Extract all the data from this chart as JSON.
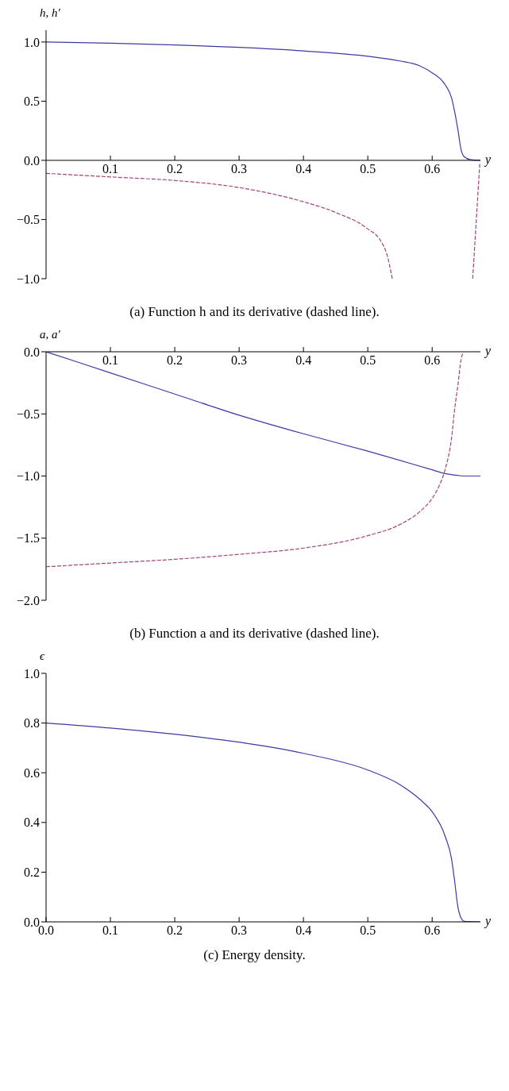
{
  "chart_data": [
    {
      "type": "line",
      "title": "(a) Function h and its derivative (dashed line).",
      "xlabel": "y",
      "ylabel": "h, h′",
      "xlim": [
        0,
        0.675
      ],
      "ylim": [
        -1,
        1.1
      ],
      "xticks": [
        0.1,
        0.2,
        0.3,
        0.4,
        0.5,
        0.6
      ],
      "yticks": [
        {
          "value": -1,
          "label": "−1.0"
        },
        {
          "value": -0.5,
          "label": "−0.5"
        },
        {
          "value": 0,
          "label": "0.0"
        },
        {
          "value": 0.5,
          "label": "0.5"
        },
        {
          "value": 1,
          "label": "1.0"
        }
      ],
      "marker": "none",
      "series": [
        {
          "color": "#3b3ba6",
          "line_style": "solid",
          "x": [
            0,
            0.1,
            0.2,
            0.3,
            0.4,
            0.5,
            0.55,
            0.58,
            0.6,
            0.62,
            0.63,
            0.635,
            0.64,
            0.645,
            0.65,
            0.66,
            0.675
          ],
          "values": [
            1,
            0.99,
            0.975,
            0.955,
            0.925,
            0.88,
            0.84,
            0.8,
            0.74,
            0.64,
            0.53,
            0.41,
            0.26,
            0.09,
            0.03,
            0.005,
            0
          ]
        },
        {
          "color": "#a3447c",
          "line_style": "dashed",
          "x": [
            0,
            0.1,
            0.2,
            0.3,
            0.4,
            0.45,
            0.5,
            0.52,
            0.53,
            0.538,
            0.6,
            0.663,
            0.674
          ],
          "values": [
            -0.11,
            -0.14,
            -0.17,
            -0.23,
            -0.35,
            -0.44,
            -0.58,
            -0.68,
            -0.8,
            -1,
            null,
            -1,
            -0.03
          ]
        }
      ]
    },
    {
      "type": "line",
      "title": "(b) Function a and its derivative (dashed line).",
      "xlabel": "y",
      "ylabel": "a, a'",
      "xlim": [
        0,
        0.675
      ],
      "ylim": [
        -2,
        0
      ],
      "xticks": [
        0.1,
        0.2,
        0.3,
        0.4,
        0.5,
        0.6
      ],
      "yticks": [
        {
          "value": -2,
          "label": "−2.0"
        },
        {
          "value": -1.5,
          "label": "−1.5"
        },
        {
          "value": -1,
          "label": "−1.0"
        },
        {
          "value": -0.5,
          "label": "−0.5"
        },
        {
          "value": 0,
          "label": "0.0"
        }
      ],
      "marker": "none",
      "series": [
        {
          "color": "#3b3ba6",
          "line_style": "solid",
          "x": [
            0,
            0.1,
            0.2,
            0.3,
            0.4,
            0.5,
            0.6,
            0.62,
            0.64,
            0.65,
            0.675
          ],
          "values": [
            0,
            -0.17,
            -0.34,
            -0.51,
            -0.66,
            -0.8,
            -0.95,
            -0.98,
            -0.995,
            -1,
            -1
          ]
        },
        {
          "color": "#a3447c",
          "line_style": "dashed",
          "x": [
            0,
            0.1,
            0.2,
            0.3,
            0.4,
            0.5,
            0.55,
            0.58,
            0.6,
            0.61,
            0.62,
            0.63,
            0.635,
            0.64,
            0.645,
            0.648
          ],
          "values": [
            -1.73,
            -1.7,
            -1.67,
            -1.63,
            -1.58,
            -1.48,
            -1.39,
            -1.29,
            -1.18,
            -1.09,
            -0.95,
            -0.7,
            -0.46,
            -0.27,
            -0.06,
            -0.01
          ]
        }
      ]
    },
    {
      "type": "line",
      "title": "(c) Energy density.",
      "xlabel": "y",
      "ylabel": "ϵ",
      "xlim": [
        0,
        0.675
      ],
      "ylim": [
        0,
        1
      ],
      "xticks": [
        {
          "value": 0,
          "label": "0.0"
        },
        0.1,
        0.2,
        0.3,
        0.4,
        0.5,
        0.6
      ],
      "yticks": [
        {
          "value": 0,
          "label": "0.0"
        },
        {
          "value": 0.2,
          "label": "0.2"
        },
        {
          "value": 0.4,
          "label": "0.4"
        },
        {
          "value": 0.6,
          "label": "0.6"
        },
        {
          "value": 0.8,
          "label": "0.8"
        },
        {
          "value": 1,
          "label": "1.0"
        }
      ],
      "marker": "none",
      "series": [
        {
          "color": "#3b3ba6",
          "line_style": "solid",
          "x": [
            0,
            0.1,
            0.2,
            0.3,
            0.4,
            0.5,
            0.55,
            0.58,
            0.6,
            0.62,
            0.63,
            0.635,
            0.64,
            0.645,
            0.65,
            0.675
          ],
          "values": [
            0.8,
            0.78,
            0.755,
            0.723,
            0.678,
            0.611,
            0.552,
            0.495,
            0.443,
            0.346,
            0.255,
            0.163,
            0.06,
            0.015,
            0.002,
            0
          ]
        }
      ]
    }
  ]
}
